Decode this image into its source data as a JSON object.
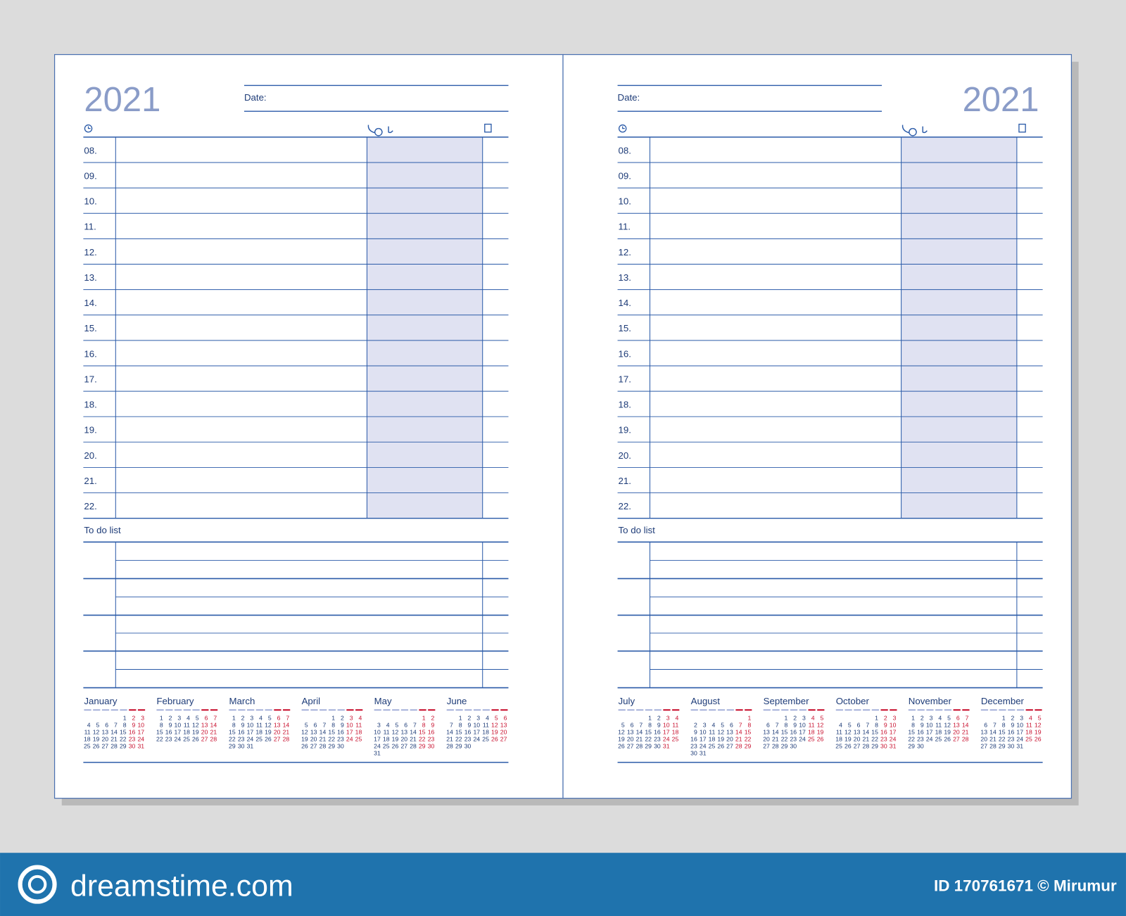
{
  "pages": [
    {
      "year": "2021",
      "date_label": "Date:",
      "hours": [
        "08.",
        "09.",
        "10.",
        "11.",
        "12.",
        "13.",
        "14.",
        "15.",
        "16.",
        "17.",
        "18.",
        "19.",
        "20.",
        "21.",
        "22."
      ],
      "todo_label": "To do list",
      "months": [
        {
          "name": "January",
          "weeks": [
            [
              null,
              null,
              null,
              null,
              1,
              2,
              3
            ],
            [
              4,
              5,
              6,
              7,
              8,
              9,
              10
            ],
            [
              11,
              12,
              13,
              14,
              15,
              16,
              17
            ],
            [
              18,
              19,
              20,
              21,
              22,
              23,
              24
            ],
            [
              25,
              26,
              27,
              28,
              29,
              30,
              31
            ]
          ]
        },
        {
          "name": "February",
          "weeks": [
            [
              1,
              2,
              3,
              4,
              5,
              6,
              7
            ],
            [
              8,
              9,
              10,
              11,
              12,
              13,
              14
            ],
            [
              15,
              16,
              17,
              18,
              19,
              20,
              21
            ],
            [
              22,
              23,
              24,
              25,
              26,
              27,
              28
            ]
          ]
        },
        {
          "name": "March",
          "weeks": [
            [
              1,
              2,
              3,
              4,
              5,
              6,
              7
            ],
            [
              8,
              9,
              10,
              11,
              12,
              13,
              14
            ],
            [
              15,
              16,
              17,
              18,
              19,
              20,
              21
            ],
            [
              22,
              23,
              24,
              25,
              26,
              27,
              28
            ],
            [
              29,
              30,
              31
            ]
          ]
        },
        {
          "name": "April",
          "weeks": [
            [
              null,
              null,
              null,
              1,
              2,
              3,
              4
            ],
            [
              5,
              6,
              7,
              8,
              9,
              10,
              11
            ],
            [
              12,
              13,
              14,
              15,
              16,
              17,
              18
            ],
            [
              19,
              20,
              21,
              22,
              23,
              24,
              25
            ],
            [
              26,
              27,
              28,
              29,
              30
            ]
          ]
        },
        {
          "name": "May",
          "weeks": [
            [
              null,
              null,
              null,
              null,
              null,
              1,
              2
            ],
            [
              3,
              4,
              5,
              6,
              7,
              8,
              9
            ],
            [
              10,
              11,
              12,
              13,
              14,
              15,
              16
            ],
            [
              17,
              18,
              19,
              20,
              21,
              22,
              23
            ],
            [
              24,
              25,
              26,
              27,
              28,
              29,
              30
            ],
            [
              31
            ]
          ]
        },
        {
          "name": "June",
          "weeks": [
            [
              null,
              1,
              2,
              3,
              4,
              5,
              6
            ],
            [
              7,
              8,
              9,
              10,
              11,
              12,
              13
            ],
            [
              14,
              15,
              16,
              17,
              18,
              19,
              20
            ],
            [
              21,
              22,
              23,
              24,
              25,
              26,
              27
            ],
            [
              28,
              29,
              30
            ]
          ]
        }
      ]
    },
    {
      "year": "2021",
      "date_label": "Date:",
      "hours": [
        "08.",
        "09.",
        "10.",
        "11.",
        "12.",
        "13.",
        "14.",
        "15.",
        "16.",
        "17.",
        "18.",
        "19.",
        "20.",
        "21.",
        "22."
      ],
      "todo_label": "To do list",
      "months": [
        {
          "name": "July",
          "weeks": [
            [
              null,
              null,
              null,
              1,
              2,
              3,
              4
            ],
            [
              5,
              6,
              7,
              8,
              9,
              10,
              11
            ],
            [
              12,
              13,
              14,
              15,
              16,
              17,
              18
            ],
            [
              19,
              20,
              21,
              22,
              23,
              24,
              25
            ],
            [
              26,
              27,
              28,
              29,
              30,
              31
            ]
          ]
        },
        {
          "name": "August",
          "weeks": [
            [
              null,
              null,
              null,
              null,
              null,
              null,
              1
            ],
            [
              2,
              3,
              4,
              5,
              6,
              7,
              8
            ],
            [
              9,
              10,
              11,
              12,
              13,
              14,
              15
            ],
            [
              16,
              17,
              18,
              19,
              20,
              21,
              22
            ],
            [
              23,
              24,
              25,
              26,
              27,
              28,
              29
            ],
            [
              30,
              31
            ]
          ]
        },
        {
          "name": "September",
          "weeks": [
            [
              null,
              null,
              1,
              2,
              3,
              4,
              5
            ],
            [
              6,
              7,
              8,
              9,
              10,
              11,
              12
            ],
            [
              13,
              14,
              15,
              16,
              17,
              18,
              19
            ],
            [
              20,
              21,
              22,
              23,
              24,
              25,
              26
            ],
            [
              27,
              28,
              29,
              30
            ]
          ]
        },
        {
          "name": "October",
          "weeks": [
            [
              null,
              null,
              null,
              null,
              1,
              2,
              3
            ],
            [
              4,
              5,
              6,
              7,
              8,
              9,
              10
            ],
            [
              11,
              12,
              13,
              14,
              15,
              16,
              17
            ],
            [
              18,
              19,
              20,
              21,
              22,
              23,
              24
            ],
            [
              25,
              26,
              27,
              28,
              29,
              30,
              31
            ]
          ]
        },
        {
          "name": "November",
          "weeks": [
            [
              1,
              2,
              3,
              4,
              5,
              6,
              7
            ],
            [
              8,
              9,
              10,
              11,
              12,
              13,
              14
            ],
            [
              15,
              16,
              17,
              18,
              19,
              20,
              21
            ],
            [
              22,
              23,
              24,
              25,
              26,
              27,
              28
            ],
            [
              29,
              30
            ]
          ]
        },
        {
          "name": "December",
          "weeks": [
            [
              null,
              null,
              1,
              2,
              3,
              4,
              5
            ],
            [
              6,
              7,
              8,
              9,
              10,
              11,
              12
            ],
            [
              13,
              14,
              15,
              16,
              17,
              18,
              19
            ],
            [
              20,
              21,
              22,
              23,
              24,
              25,
              26
            ],
            [
              27,
              28,
              29,
              30,
              31
            ]
          ]
        }
      ]
    }
  ],
  "footer": {
    "logo": "dreamstime.com",
    "credit": "ID 170761671 © Mirumur"
  }
}
